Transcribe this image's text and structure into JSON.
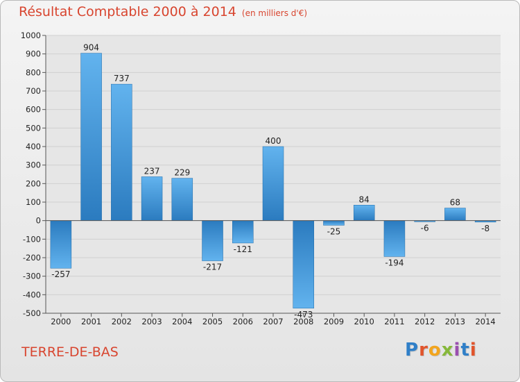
{
  "title": "Résultat Comptable 2000 à 2014",
  "subtitle": "(en milliers d'€)",
  "commune": "TERRE-DE-BAS",
  "logo_text": "Proxiti",
  "colors": {
    "title": "#d8452f",
    "bar_dark": "#2b7bbf",
    "bar_light": "#62b3ee",
    "axis": "#555555",
    "grid": "#d0d0d0"
  },
  "chart_data": {
    "type": "bar",
    "title": "Résultat Comptable 2000 à 2014",
    "units": "en milliers d'€",
    "categories": [
      "2000",
      "2001",
      "2002",
      "2003",
      "2004",
      "2005",
      "2006",
      "2007",
      "2008",
      "2009",
      "2010",
      "2011",
      "2012",
      "2013",
      "2014"
    ],
    "values": [
      -257,
      904,
      737,
      237,
      229,
      -217,
      -121,
      400,
      -473,
      -25,
      84,
      -194,
      -6,
      68,
      -8
    ],
    "ylim": [
      -500,
      1000
    ],
    "yticks": [
      -500,
      -400,
      -300,
      -200,
      -100,
      0,
      100,
      200,
      300,
      400,
      500,
      600,
      700,
      800,
      900,
      1000
    ],
    "xlabel": "",
    "ylabel": "",
    "grid": true
  }
}
